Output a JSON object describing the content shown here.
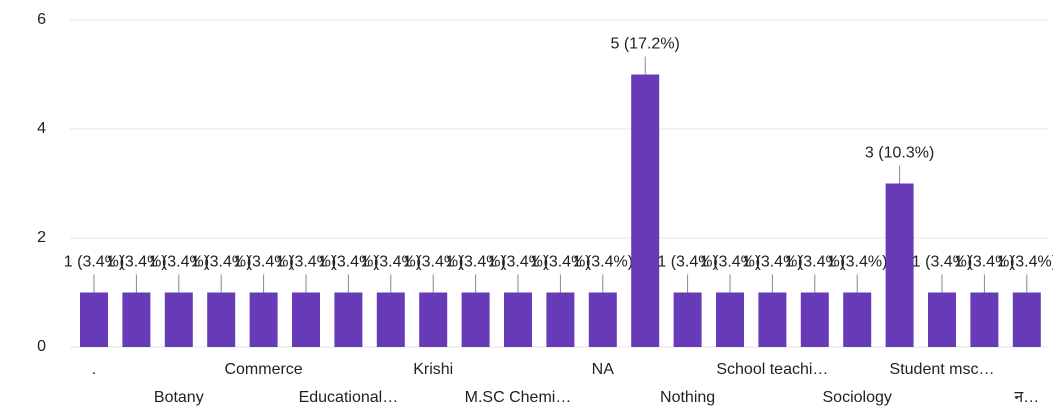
{
  "chart_data": {
    "type": "bar",
    "categories": [
      ".",
      null,
      "Botany",
      null,
      "Commerce",
      null,
      "Educational…",
      null,
      "Krishi",
      null,
      "M.SC Chemi…",
      null,
      "NA",
      null,
      "Nothing",
      null,
      "School teachi…",
      null,
      "Sociology",
      null,
      "Student msc…",
      null,
      "न…"
    ],
    "values": [
      1,
      1,
      1,
      1,
      1,
      1,
      1,
      1,
      1,
      1,
      1,
      1,
      1,
      5,
      1,
      1,
      1,
      1,
      1,
      3,
      1,
      1,
      1
    ],
    "value_labels": [
      "1 (3.4%)",
      "1 (3.4%)",
      "1 (3.4%)",
      "1 (3.4%)",
      "1 (3.4%)",
      "1 (3.4%)",
      "1 (3.4%)",
      "1 (3.4%)",
      "1 (3.4%)",
      "1 (3.4%)",
      "1 (3.4%)",
      "1 (3.4%)",
      "1 (3.4%)",
      "5 (17.2%)",
      "1 (3.4%)",
      "1 (3.4%)",
      "1 (3.4%)",
      "1 (3.4%)",
      "1 (3.4%)",
      "3 (10.3%)",
      "1 (3.4%)",
      "1 (3.4%)",
      "1 (3.4%)"
    ],
    "color": "#673ab7",
    "ylim": [
      0,
      6
    ],
    "yticks": [
      0,
      2,
      4,
      6
    ],
    "grid": true
  }
}
